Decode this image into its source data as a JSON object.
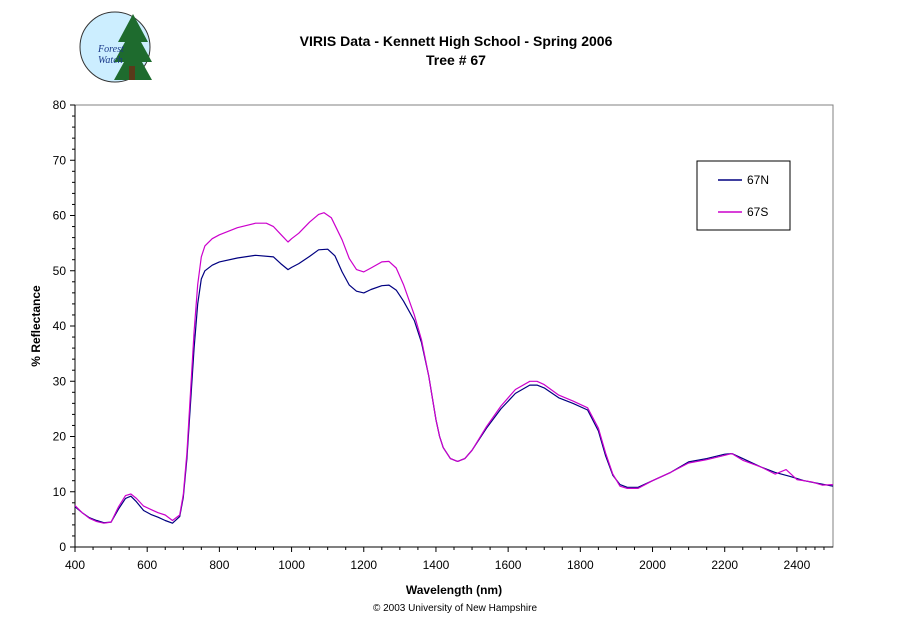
{
  "logo": {
    "line1": "Forest",
    "line2": "Watch"
  },
  "footer": {
    "copyright": "© 2003 University of New Hampshire"
  },
  "chart_data": {
    "type": "line",
    "title": "VIRIS Data -  Kennett High School  - Spring 2006",
    "subtitle": "Tree # 67",
    "xlabel": "Wavelength (nm)",
    "ylabel": "%  Reflectance",
    "xlim": [
      400,
      2500
    ],
    "ylim": [
      0,
      80
    ],
    "x_ticks": [
      "400",
      "600",
      "800",
      "1000",
      "1200",
      "1400",
      "1600",
      "1800",
      "2000",
      "2200",
      "2400"
    ],
    "y_ticks": [
      "0",
      "10",
      "20",
      "30",
      "40",
      "50",
      "60",
      "70",
      "80"
    ],
    "grid": false,
    "legend_position": "top-right",
    "series": [
      {
        "name": "67N",
        "color": "#000080",
        "points": [
          [
            400,
            7.3
          ],
          [
            420,
            6.2
          ],
          [
            440,
            5.3
          ],
          [
            460,
            4.8
          ],
          [
            480,
            4.4
          ],
          [
            500,
            4.5
          ],
          [
            520,
            6.8
          ],
          [
            540,
            8.8
          ],
          [
            555,
            9.2
          ],
          [
            570,
            8.2
          ],
          [
            590,
            6.6
          ],
          [
            610,
            5.9
          ],
          [
            630,
            5.4
          ],
          [
            650,
            4.8
          ],
          [
            670,
            4.3
          ],
          [
            690,
            5.5
          ],
          [
            700,
            9.0
          ],
          [
            710,
            16.0
          ],
          [
            720,
            26.0
          ],
          [
            730,
            36.0
          ],
          [
            740,
            44.0
          ],
          [
            750,
            48.5
          ],
          [
            760,
            50.0
          ],
          [
            780,
            51.0
          ],
          [
            800,
            51.6
          ],
          [
            850,
            52.3
          ],
          [
            900,
            52.8
          ],
          [
            950,
            52.5
          ],
          [
            970,
            51.3
          ],
          [
            990,
            50.2
          ],
          [
            1000,
            50.6
          ],
          [
            1020,
            51.3
          ],
          [
            1050,
            52.6
          ],
          [
            1075,
            53.8
          ],
          [
            1100,
            53.9
          ],
          [
            1120,
            52.7
          ],
          [
            1140,
            49.8
          ],
          [
            1160,
            47.4
          ],
          [
            1180,
            46.3
          ],
          [
            1200,
            46.0
          ],
          [
            1220,
            46.6
          ],
          [
            1250,
            47.3
          ],
          [
            1270,
            47.4
          ],
          [
            1290,
            46.5
          ],
          [
            1310,
            44.5
          ],
          [
            1340,
            41.0
          ],
          [
            1360,
            37.0
          ],
          [
            1380,
            31.0
          ],
          [
            1400,
            23.0
          ],
          [
            1410,
            20.0
          ],
          [
            1420,
            18.0
          ],
          [
            1440,
            16.0
          ],
          [
            1460,
            15.5
          ],
          [
            1480,
            16.0
          ],
          [
            1500,
            17.5
          ],
          [
            1540,
            21.5
          ],
          [
            1580,
            25.0
          ],
          [
            1620,
            27.8
          ],
          [
            1660,
            29.3
          ],
          [
            1680,
            29.3
          ],
          [
            1700,
            28.8
          ],
          [
            1740,
            27.0
          ],
          [
            1780,
            26.0
          ],
          [
            1820,
            24.8
          ],
          [
            1850,
            21.0
          ],
          [
            1870,
            16.5
          ],
          [
            1890,
            13.0
          ],
          [
            1910,
            11.3
          ],
          [
            1930,
            10.8
          ],
          [
            1960,
            10.8
          ],
          [
            2000,
            12.0
          ],
          [
            2050,
            13.5
          ],
          [
            2100,
            15.4
          ],
          [
            2150,
            16.0
          ],
          [
            2200,
            16.8
          ],
          [
            2220,
            16.9
          ],
          [
            2250,
            16.0
          ],
          [
            2300,
            14.5
          ],
          [
            2340,
            13.5
          ],
          [
            2380,
            12.8
          ],
          [
            2420,
            12.0
          ],
          [
            2460,
            11.5
          ],
          [
            2500,
            11.0
          ]
        ]
      },
      {
        "name": "67S",
        "color": "#cc00cc",
        "points": [
          [
            400,
            7.5
          ],
          [
            420,
            6.2
          ],
          [
            440,
            5.2
          ],
          [
            460,
            4.6
          ],
          [
            480,
            4.3
          ],
          [
            500,
            4.5
          ],
          [
            520,
            7.2
          ],
          [
            540,
            9.3
          ],
          [
            555,
            9.6
          ],
          [
            570,
            8.8
          ],
          [
            590,
            7.4
          ],
          [
            610,
            6.8
          ],
          [
            630,
            6.2
          ],
          [
            650,
            5.8
          ],
          [
            670,
            4.8
          ],
          [
            690,
            5.8
          ],
          [
            700,
            9.5
          ],
          [
            710,
            17.0
          ],
          [
            720,
            28.0
          ],
          [
            730,
            39.0
          ],
          [
            740,
            47.5
          ],
          [
            750,
            52.5
          ],
          [
            760,
            54.5
          ],
          [
            780,
            55.8
          ],
          [
            800,
            56.5
          ],
          [
            850,
            57.8
          ],
          [
            900,
            58.6
          ],
          [
            930,
            58.6
          ],
          [
            950,
            58.0
          ],
          [
            970,
            56.6
          ],
          [
            990,
            55.2
          ],
          [
            1000,
            55.8
          ],
          [
            1020,
            56.8
          ],
          [
            1050,
            58.8
          ],
          [
            1075,
            60.2
          ],
          [
            1090,
            60.5
          ],
          [
            1110,
            59.6
          ],
          [
            1140,
            55.6
          ],
          [
            1160,
            52.2
          ],
          [
            1180,
            50.2
          ],
          [
            1200,
            49.8
          ],
          [
            1220,
            50.5
          ],
          [
            1250,
            51.6
          ],
          [
            1270,
            51.7
          ],
          [
            1290,
            50.5
          ],
          [
            1310,
            47.5
          ],
          [
            1340,
            42.0
          ],
          [
            1360,
            37.5
          ],
          [
            1380,
            31.0
          ],
          [
            1400,
            23.0
          ],
          [
            1410,
            20.0
          ],
          [
            1420,
            18.0
          ],
          [
            1440,
            16.0
          ],
          [
            1460,
            15.5
          ],
          [
            1480,
            16.0
          ],
          [
            1500,
            17.5
          ],
          [
            1540,
            21.8
          ],
          [
            1580,
            25.5
          ],
          [
            1620,
            28.5
          ],
          [
            1660,
            30.0
          ],
          [
            1680,
            30.0
          ],
          [
            1700,
            29.4
          ],
          [
            1740,
            27.5
          ],
          [
            1780,
            26.4
          ],
          [
            1820,
            25.2
          ],
          [
            1850,
            21.5
          ],
          [
            1870,
            17.0
          ],
          [
            1890,
            13.2
          ],
          [
            1910,
            11.0
          ],
          [
            1930,
            10.6
          ],
          [
            1960,
            10.6
          ],
          [
            2000,
            12.0
          ],
          [
            2050,
            13.5
          ],
          [
            2100,
            15.2
          ],
          [
            2150,
            15.8
          ],
          [
            2200,
            16.6
          ],
          [
            2220,
            16.9
          ],
          [
            2250,
            15.7
          ],
          [
            2300,
            14.5
          ],
          [
            2340,
            13.2
          ],
          [
            2370,
            14.0
          ],
          [
            2400,
            12.2
          ],
          [
            2440,
            11.8
          ],
          [
            2470,
            11.2
          ],
          [
            2500,
            11.3
          ]
        ]
      }
    ]
  }
}
